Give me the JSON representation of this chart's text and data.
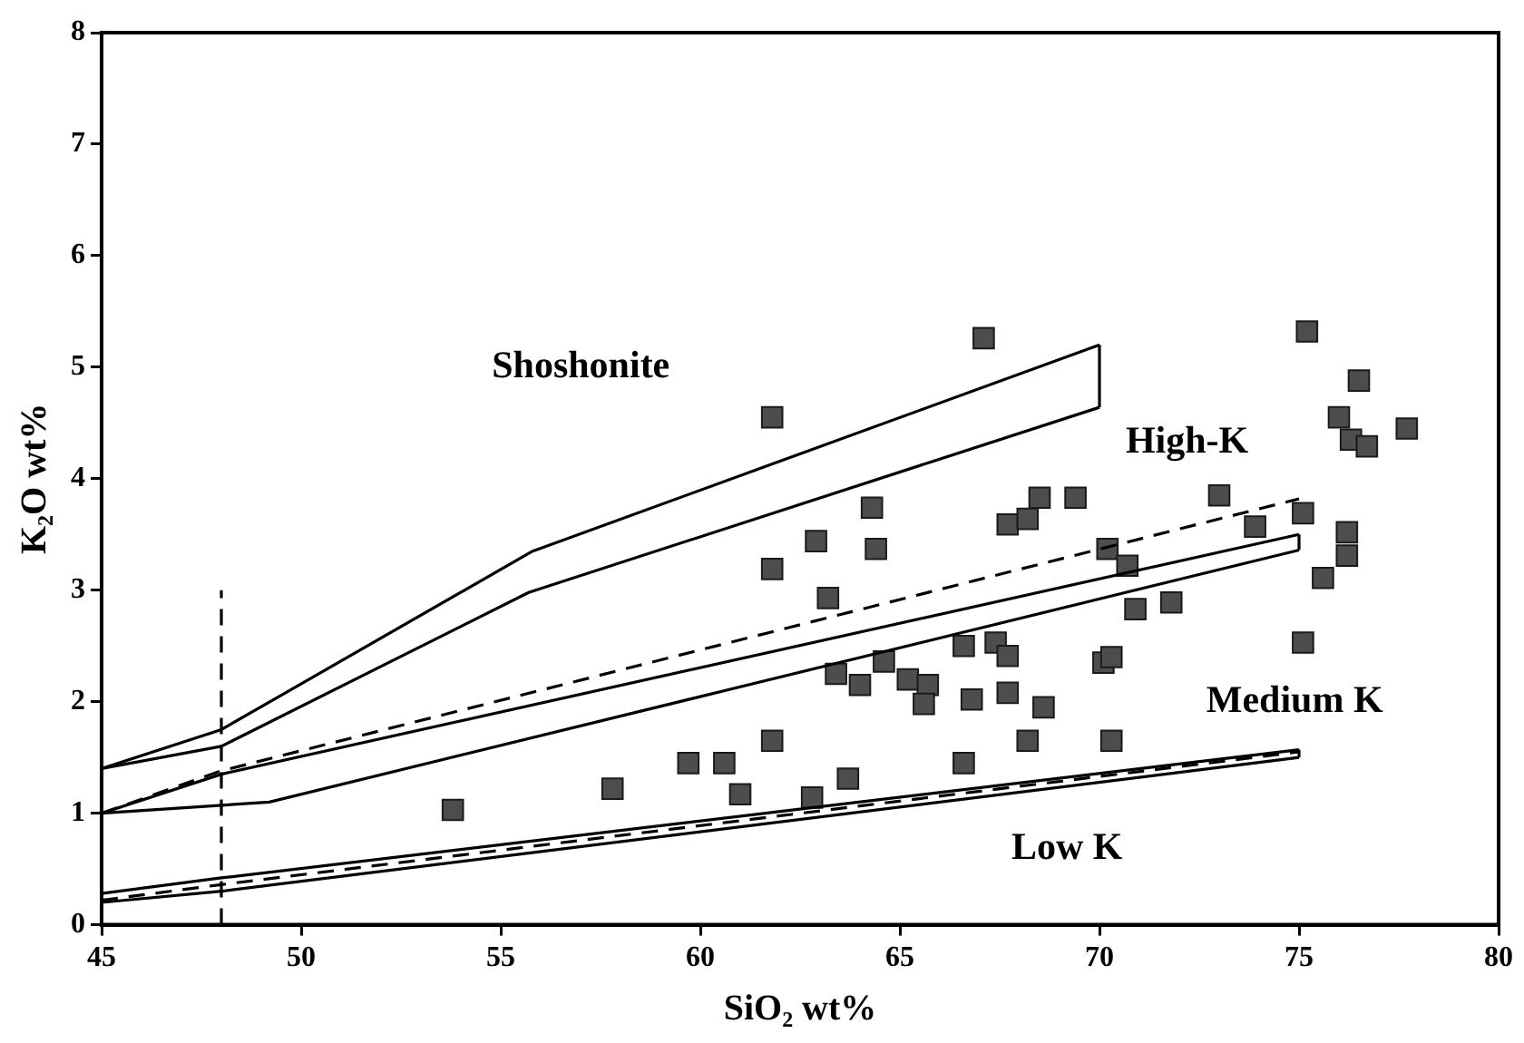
{
  "chart_data": {
    "type": "scatter",
    "xlabel": "SiO₂ wt%",
    "ylabel": "K₂O wt%",
    "xlim": [
      45,
      80
    ],
    "xticks": [
      45,
      50,
      55,
      60,
      65,
      70,
      75,
      80
    ],
    "ylim": [
      0,
      8
    ],
    "yticks": [
      0,
      1,
      2,
      3,
      4,
      5,
      6,
      7,
      8
    ],
    "grid": false,
    "legend": false,
    "marker": "square",
    "annotations": [
      "Shoshonite",
      "High-K",
      "Medium K",
      "Low K"
    ],
    "series": [
      {
        "type": "line",
        "color": "#000000",
        "marker": "none",
        "line_style": "solid",
        "x": [
          45,
          48,
          55.8,
          70
        ],
        "values": [
          1.4,
          1.75,
          3.35,
          5.2
        ]
      },
      {
        "type": "line",
        "color": "#000000",
        "marker": "none",
        "line_style": "solid",
        "x": [
          45,
          48,
          55.7,
          70
        ],
        "values": [
          1.4,
          1.6,
          2.98,
          4.64
        ]
      },
      {
        "type": "line",
        "color": "#000000",
        "marker": "none",
        "line_style": "solid",
        "x": [
          70,
          70
        ],
        "values": [
          4.64,
          5.2
        ]
      },
      {
        "type": "line",
        "color": "#000000",
        "marker": "none",
        "line_style": "solid",
        "x": [
          45,
          48,
          75
        ],
        "values": [
          1.0,
          1.35,
          3.5
        ]
      },
      {
        "type": "line",
        "color": "#000000",
        "marker": "none",
        "line_style": "solid",
        "x": [
          45,
          49.2,
          75
        ],
        "values": [
          1.0,
          1.1,
          3.36
        ]
      },
      {
        "type": "line",
        "color": "#000000",
        "marker": "none",
        "line_style": "solid",
        "x": [
          75,
          75
        ],
        "values": [
          3.36,
          3.5
        ]
      },
      {
        "type": "line",
        "color": "#000000",
        "marker": "none",
        "line_style": "dashed",
        "x": [
          45,
          48,
          75
        ],
        "values": [
          1.0,
          1.38,
          3.82
        ]
      },
      {
        "type": "line",
        "color": "#000000",
        "marker": "none",
        "line_style": "solid",
        "x": [
          45,
          48,
          75
        ],
        "values": [
          0.28,
          0.42,
          1.57
        ]
      },
      {
        "type": "line",
        "color": "#000000",
        "marker": "none",
        "line_style": "solid",
        "x": [
          45,
          48,
          75
        ],
        "values": [
          0.2,
          0.3,
          1.5
        ]
      },
      {
        "type": "line",
        "color": "#000000",
        "marker": "none",
        "line_style": "solid",
        "x": [
          75,
          75
        ],
        "values": [
          1.5,
          1.57
        ]
      },
      {
        "type": "line",
        "color": "#000000",
        "marker": "none",
        "line_style": "dashed",
        "x": [
          45,
          48,
          75
        ],
        "values": [
          0.22,
          0.36,
          1.55
        ]
      },
      {
        "type": "line",
        "color": "#000000",
        "marker": "none",
        "line_style": "dashed",
        "x": [
          48,
          48
        ],
        "values": [
          0,
          3
        ]
      },
      {
        "type": "scatter",
        "color": "#4d4d4d",
        "x": [
          53.8,
          57.8,
          59.7,
          60.6,
          61.0,
          61.8,
          61.8,
          61.8,
          62.8,
          62.9,
          63.2,
          63.4,
          63.7,
          64.0,
          64.3,
          64.4,
          64.6,
          65.2,
          65.7,
          65.6,
          66.6,
          66.6,
          66.8,
          67.1,
          67.4,
          67.7,
          67.7,
          67.7,
          68.2,
          68.2,
          68.5,
          68.6,
          69.4,
          70.1,
          70.2,
          70.3,
          70.3,
          70.7,
          70.9,
          71.8,
          73.0,
          73.9,
          75.1,
          75.1,
          75.2,
          75.6,
          76.0,
          76.2,
          76.2,
          76.3,
          76.5,
          76.7,
          77.7
        ],
        "values": [
          1.03,
          1.22,
          1.45,
          1.45,
          1.17,
          4.55,
          3.19,
          1.65,
          1.14,
          3.44,
          2.93,
          2.25,
          1.31,
          2.15,
          3.74,
          3.37,
          2.36,
          2.2,
          2.15,
          1.98,
          2.5,
          1.45,
          2.02,
          5.26,
          2.53,
          2.41,
          2.08,
          3.59,
          3.64,
          1.65,
          3.83,
          1.95,
          3.83,
          2.35,
          3.37,
          2.4,
          1.65,
          3.22,
          2.83,
          2.89,
          3.85,
          3.57,
          3.69,
          2.53,
          5.32,
          3.11,
          4.55,
          3.52,
          3.31,
          4.35,
          4.88,
          4.29,
          4.45
        ]
      }
    ]
  }
}
